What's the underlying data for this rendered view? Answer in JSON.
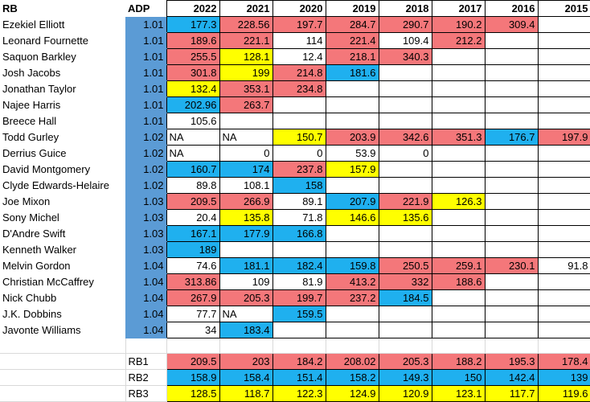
{
  "sheet": {
    "header": {
      "name": "RB",
      "adp": "ADP",
      "years": [
        "2022",
        "2021",
        "2020",
        "2019",
        "2018",
        "2017",
        "2016",
        "2015"
      ]
    },
    "colors": {
      "red": "#f4777a",
      "blue": "#1fb0ef",
      "yellow": "#ffff00",
      "adp": "#5b9bd5",
      "white": "#ffffff"
    },
    "rows": [
      {
        "name": "Ezekiel Elliott",
        "adp": "1.01",
        "cells": [
          [
            "177.3",
            "b"
          ],
          [
            "228.56",
            "r"
          ],
          [
            "197.7",
            "r"
          ],
          [
            "284.7",
            "r"
          ],
          [
            "290.7",
            "r"
          ],
          [
            "190.2",
            "r"
          ],
          [
            "309.4",
            "r"
          ],
          [
            "",
            ""
          ]
        ]
      },
      {
        "name": "Leonard Fournette",
        "adp": "1.01",
        "cells": [
          [
            "189.6",
            "r"
          ],
          [
            "221.1",
            "r"
          ],
          [
            "114",
            ""
          ],
          [
            "221.4",
            "r"
          ],
          [
            "109.4",
            ""
          ],
          [
            "212.2",
            "r"
          ],
          [
            "",
            ""
          ],
          [
            "",
            ""
          ]
        ]
      },
      {
        "name": "Saquon Barkley",
        "adp": "1.01",
        "cells": [
          [
            "255.5",
            "r"
          ],
          [
            "128.1",
            "y"
          ],
          [
            "12.4",
            ""
          ],
          [
            "218.1",
            "r"
          ],
          [
            "340.3",
            "r"
          ],
          [
            "",
            ""
          ],
          [
            "",
            ""
          ],
          [
            "",
            ""
          ]
        ]
      },
      {
        "name": "Josh Jacobs",
        "adp": "1.01",
        "cells": [
          [
            "301.8",
            "r"
          ],
          [
            "199",
            "y"
          ],
          [
            "214.8",
            "r"
          ],
          [
            "181.6",
            "b"
          ],
          [
            "",
            ""
          ],
          [
            "",
            ""
          ],
          [
            "",
            ""
          ],
          [
            "",
            ""
          ]
        ]
      },
      {
        "name": "Jonathan Taylor",
        "adp": "1.01",
        "cells": [
          [
            "132.4",
            "y"
          ],
          [
            "353.1",
            "r"
          ],
          [
            "234.8",
            "r"
          ],
          [
            "",
            ""
          ],
          [
            "",
            ""
          ],
          [
            "",
            ""
          ],
          [
            "",
            ""
          ],
          [
            "",
            ""
          ]
        ]
      },
      {
        "name": "Najee Harris",
        "adp": "1.01",
        "cells": [
          [
            "202.96",
            "b"
          ],
          [
            "263.7",
            "r"
          ],
          [
            "",
            ""
          ],
          [
            "",
            ""
          ],
          [
            "",
            ""
          ],
          [
            "",
            ""
          ],
          [
            "",
            ""
          ],
          [
            "",
            ""
          ]
        ]
      },
      {
        "name": "Breece Hall",
        "adp": "1.01",
        "cells": [
          [
            "105.6",
            ""
          ],
          [
            "",
            ""
          ],
          [
            "",
            ""
          ],
          [
            "",
            ""
          ],
          [
            "",
            ""
          ],
          [
            "",
            ""
          ],
          [
            "",
            ""
          ],
          [
            "",
            ""
          ]
        ]
      },
      {
        "name": "Todd Gurley",
        "adp": "1.02",
        "cells": [
          [
            "NA",
            "t"
          ],
          [
            "NA",
            "t"
          ],
          [
            "150.7",
            "y"
          ],
          [
            "203.9",
            "r"
          ],
          [
            "342.6",
            "r"
          ],
          [
            "351.3",
            "r"
          ],
          [
            "176.7",
            "b"
          ],
          [
            "197.9",
            "r"
          ]
        ]
      },
      {
        "name": "Derrius Guice",
        "adp": "1.02",
        "cells": [
          [
            "NA",
            "t"
          ],
          [
            "0",
            ""
          ],
          [
            "0",
            ""
          ],
          [
            "53.9",
            ""
          ],
          [
            "0",
            ""
          ],
          [
            "",
            ""
          ],
          [
            "",
            ""
          ],
          [
            "",
            ""
          ]
        ]
      },
      {
        "name": "David Montgomery",
        "adp": "1.02",
        "cells": [
          [
            "160.7",
            "b"
          ],
          [
            "174",
            "b"
          ],
          [
            "237.8",
            "r"
          ],
          [
            "157.9",
            "y"
          ],
          [
            "",
            ""
          ],
          [
            "",
            ""
          ],
          [
            "",
            ""
          ],
          [
            "",
            ""
          ]
        ]
      },
      {
        "name": "Clyde Edwards-Helaire",
        "adp": "1.02",
        "cells": [
          [
            "89.8",
            ""
          ],
          [
            "108.1",
            ""
          ],
          [
            "158",
            "b"
          ],
          [
            "",
            ""
          ],
          [
            "",
            ""
          ],
          [
            "",
            ""
          ],
          [
            "",
            ""
          ],
          [
            "",
            ""
          ]
        ]
      },
      {
        "name": "Joe Mixon",
        "adp": "1.03",
        "cells": [
          [
            "209.5",
            "r"
          ],
          [
            "266.9",
            "r"
          ],
          [
            "89.1",
            ""
          ],
          [
            "207.9",
            "b"
          ],
          [
            "221.9",
            "r"
          ],
          [
            "126.3",
            "y"
          ],
          [
            "",
            ""
          ],
          [
            "",
            ""
          ]
        ]
      },
      {
        "name": "Sony Michel",
        "adp": "1.03",
        "cells": [
          [
            "20.4",
            ""
          ],
          [
            "135.8",
            "y"
          ],
          [
            "71.8",
            ""
          ],
          [
            "146.6",
            "y"
          ],
          [
            "135.6",
            "y"
          ],
          [
            "",
            ""
          ],
          [
            "",
            ""
          ],
          [
            "",
            ""
          ]
        ]
      },
      {
        "name": "D'Andre Swift",
        "adp": "1.03",
        "cells": [
          [
            "167.1",
            "b"
          ],
          [
            "177.9",
            "b"
          ],
          [
            "166.8",
            "b"
          ],
          [
            "",
            ""
          ],
          [
            "",
            ""
          ],
          [
            "",
            ""
          ],
          [
            "",
            ""
          ],
          [
            "",
            ""
          ]
        ]
      },
      {
        "name": "Kenneth Walker",
        "adp": "1.03",
        "cells": [
          [
            "189",
            "b"
          ],
          [
            "",
            ""
          ],
          [
            "",
            ""
          ],
          [
            "",
            ""
          ],
          [
            "",
            ""
          ],
          [
            "",
            ""
          ],
          [
            "",
            ""
          ],
          [
            "",
            ""
          ]
        ]
      },
      {
        "name": "Melvin Gordon",
        "adp": "1.04",
        "cells": [
          [
            "74.6",
            ""
          ],
          [
            "181.1",
            "b"
          ],
          [
            "182.4",
            "b"
          ],
          [
            "159.8",
            "b"
          ],
          [
            "250.5",
            "r"
          ],
          [
            "259.1",
            "r"
          ],
          [
            "230.1",
            "r"
          ],
          [
            "91.8",
            ""
          ]
        ]
      },
      {
        "name": "Christian McCaffrey",
        "adp": "1.04",
        "cells": [
          [
            "313.86",
            "r"
          ],
          [
            "109",
            ""
          ],
          [
            "81.9",
            ""
          ],
          [
            "413.2",
            "r"
          ],
          [
            "332",
            "r"
          ],
          [
            "188.6",
            "r"
          ],
          [
            "",
            ""
          ],
          [
            "",
            ""
          ]
        ]
      },
      {
        "name": "Nick Chubb",
        "adp": "1.04",
        "cells": [
          [
            "267.9",
            "r"
          ],
          [
            "205.3",
            "r"
          ],
          [
            "199.7",
            "r"
          ],
          [
            "237.2",
            "r"
          ],
          [
            "184.5",
            "b"
          ],
          [
            "",
            ""
          ],
          [
            "",
            ""
          ],
          [
            "",
            ""
          ]
        ]
      },
      {
        "name": "J.K. Dobbins",
        "adp": "1.04",
        "cells": [
          [
            "77.7",
            ""
          ],
          [
            "NA",
            "t"
          ],
          [
            "159.5",
            "b"
          ],
          [
            "",
            ""
          ],
          [
            "",
            ""
          ],
          [
            "",
            ""
          ],
          [
            "",
            ""
          ],
          [
            "",
            ""
          ]
        ]
      },
      {
        "name": "Javonte Williams",
        "adp": "1.04",
        "cells": [
          [
            "34",
            ""
          ],
          [
            "183.4",
            "b"
          ],
          [
            "",
            ""
          ],
          [
            "",
            ""
          ],
          [
            "",
            ""
          ],
          [
            "",
            ""
          ],
          [
            "",
            ""
          ],
          [
            "",
            ""
          ]
        ]
      }
    ],
    "summary": [
      {
        "label": "RB1",
        "color": "r",
        "values": [
          "209.5",
          "203",
          "184.2",
          "208.02",
          "205.3",
          "188.2",
          "195.3",
          "178.4"
        ]
      },
      {
        "label": "RB2",
        "color": "b",
        "values": [
          "158.9",
          "158.4",
          "151.4",
          "158.2",
          "149.3",
          "150",
          "142.4",
          "139"
        ]
      },
      {
        "label": "RB3",
        "color": "y",
        "values": [
          "128.5",
          "118.7",
          "122.3",
          "124.9",
          "120.9",
          "123.1",
          "117.7",
          "119.6"
        ]
      }
    ]
  }
}
